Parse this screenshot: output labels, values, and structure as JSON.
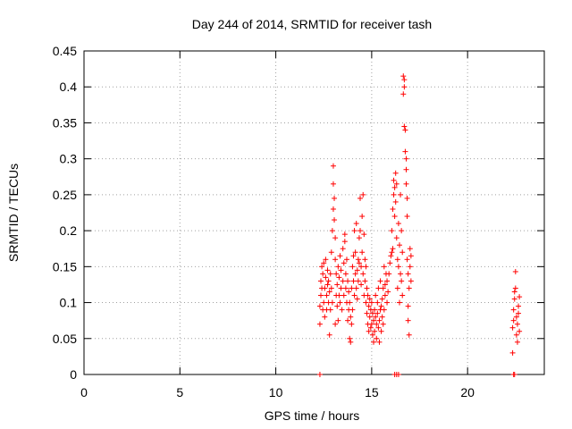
{
  "chart_data": {
    "type": "scatter",
    "title": "Day 244 of 2014, SRMTID for receiver tash",
    "xlabel": "GPS time / hours",
    "ylabel": "SRMTID / TECUs",
    "xlim": [
      0,
      24
    ],
    "ylim": [
      0,
      0.45
    ],
    "xticks": [
      0,
      5,
      10,
      15,
      20
    ],
    "yticks": [
      0,
      0.05,
      0.1,
      0.15,
      0.2,
      0.25,
      0.3,
      0.35,
      0.4,
      0.45
    ],
    "grid": true,
    "marker_color": "#ff0000",
    "series": [
      {
        "values": [
          [
            12.3,
            0.07
          ],
          [
            12.3,
            0.095
          ],
          [
            12.35,
            0.11
          ],
          [
            12.35,
            0.13
          ],
          [
            12.4,
            0.15
          ],
          [
            12.4,
            0.12
          ],
          [
            12.45,
            0.09
          ],
          [
            12.45,
            0.14
          ],
          [
            12.5,
            0.155
          ],
          [
            12.5,
            0.1
          ],
          [
            12.55,
            0.12
          ],
          [
            12.55,
            0.08
          ],
          [
            12.6,
            0.135
          ],
          [
            12.6,
            0.16
          ],
          [
            12.65,
            0.11
          ],
          [
            12.65,
            0.09
          ],
          [
            12.7,
            0.125
          ],
          [
            12.7,
            0.145
          ],
          [
            12.75,
            0.1
          ],
          [
            12.75,
            0.13
          ],
          [
            12.8,
            0.055
          ],
          [
            12.8,
            0.115
          ],
          [
            12.85,
            0.14
          ],
          [
            12.85,
            0.09
          ],
          [
            12.9,
            0.17
          ],
          [
            12.9,
            0.12
          ],
          [
            12.95,
            0.2
          ],
          [
            12.95,
            0.1
          ],
          [
            13.0,
            0.29
          ],
          [
            13.0,
            0.265
          ],
          [
            13.0,
            0.23
          ],
          [
            13.05,
            0.245
          ],
          [
            13.05,
            0.215
          ],
          [
            13.1,
            0.19
          ],
          [
            13.1,
            0.16
          ],
          [
            13.1,
            0.07
          ],
          [
            13.15,
            0.11
          ],
          [
            13.15,
            0.14
          ],
          [
            13.2,
            0.125
          ],
          [
            13.2,
            0.095
          ],
          [
            13.25,
            0.075
          ],
          [
            13.25,
            0.15
          ],
          [
            13.3,
            0.135
          ],
          [
            13.3,
            0.11
          ],
          [
            13.35,
            0.1
          ],
          [
            13.35,
            0.165
          ],
          [
            13.4,
            0.12
          ],
          [
            13.4,
            0.145
          ],
          [
            13.45,
            0.09
          ],
          [
            13.5,
            0.13
          ],
          [
            13.5,
            0.175
          ],
          [
            13.55,
            0.11
          ],
          [
            13.55,
            0.155
          ],
          [
            13.6,
            0.185
          ],
          [
            13.6,
            0.195
          ],
          [
            13.65,
            0.12
          ],
          [
            13.65,
            0.14
          ],
          [
            13.7,
            0.1
          ],
          [
            13.7,
            0.16
          ],
          [
            13.75,
            0.13
          ],
          [
            13.75,
            0.075
          ],
          [
            13.8,
            0.09
          ],
          [
            13.8,
            0.115
          ],
          [
            13.85,
            0.05
          ],
          [
            13.85,
            0.1
          ],
          [
            13.9,
            0.045
          ],
          [
            13.9,
            0.08
          ],
          [
            13.95,
            0.07
          ],
          [
            13.95,
            0.12
          ],
          [
            14.0,
            0.15
          ],
          [
            14.0,
            0.09
          ],
          [
            14.05,
            0.13
          ],
          [
            14.05,
            0.165
          ],
          [
            14.1,
            0.2
          ],
          [
            14.1,
            0.11
          ],
          [
            14.15,
            0.14
          ],
          [
            14.15,
            0.17
          ],
          [
            14.2,
            0.21
          ],
          [
            14.2,
            0.12
          ],
          [
            14.25,
            0.145
          ],
          [
            14.25,
            0.105
          ],
          [
            14.3,
            0.16
          ],
          [
            14.3,
            0.13
          ],
          [
            14.35,
            0.19
          ],
          [
            14.35,
            0.155
          ],
          [
            14.4,
            0.245
          ],
          [
            14.4,
            0.2
          ],
          [
            14.45,
            0.15
          ],
          [
            14.45,
            0.125
          ],
          [
            14.5,
            0.22
          ],
          [
            14.5,
            0.17
          ],
          [
            14.55,
            0.25
          ],
          [
            14.55,
            0.14
          ],
          [
            14.6,
            0.195
          ],
          [
            14.6,
            0.11
          ],
          [
            14.65,
            0.13
          ],
          [
            14.65,
            0.16
          ],
          [
            14.7,
            0.15
          ],
          [
            14.7,
            0.1
          ],
          [
            14.75,
            0.085
          ],
          [
            14.75,
            0.12
          ],
          [
            14.8,
            0.11
          ],
          [
            14.8,
            0.07
          ],
          [
            14.85,
            0.095
          ],
          [
            14.85,
            0.06
          ],
          [
            14.9,
            0.08
          ],
          [
            14.9,
            0.105
          ],
          [
            14.95,
            0.09
          ],
          [
            14.95,
            0.065
          ],
          [
            15.0,
            0.07
          ],
          [
            15.0,
            0.1
          ],
          [
            15.05,
            0.055
          ],
          [
            15.05,
            0.085
          ],
          [
            15.1,
            0.045
          ],
          [
            15.1,
            0.075
          ],
          [
            15.15,
            0.09
          ],
          [
            15.15,
            0.06
          ],
          [
            15.2,
            0.08
          ],
          [
            15.2,
            0.11
          ],
          [
            15.25,
            0.05
          ],
          [
            15.25,
            0.07
          ],
          [
            15.3,
            0.1
          ],
          [
            15.3,
            0.085
          ],
          [
            15.35,
            0.065
          ],
          [
            15.35,
            0.12
          ],
          [
            15.4,
            0.075
          ],
          [
            15.4,
            0.045
          ],
          [
            15.45,
            0.09
          ],
          [
            15.45,
            0.13
          ],
          [
            15.5,
            0.06
          ],
          [
            15.5,
            0.095
          ],
          [
            15.55,
            0.08
          ],
          [
            15.55,
            0.105
          ],
          [
            15.6,
            0.12
          ],
          [
            15.6,
            0.07
          ],
          [
            15.65,
            0.15
          ],
          [
            15.65,
            0.09
          ],
          [
            15.7,
            0.11
          ],
          [
            15.7,
            0.125
          ],
          [
            15.75,
            0.14
          ],
          [
            15.8,
            0.1
          ],
          [
            15.8,
            0.13
          ],
          [
            15.85,
            0.115
          ],
          [
            15.9,
            0.14
          ],
          [
            15.95,
            0.155
          ],
          [
            16.0,
            0.165
          ],
          [
            16.05,
            0.17
          ],
          [
            16.05,
            0.2
          ],
          [
            16.1,
            0.175
          ],
          [
            16.1,
            0.23
          ],
          [
            16.15,
            0.25
          ],
          [
            16.15,
            0.27
          ],
          [
            16.2,
            0.26
          ],
          [
            16.2,
            0.22
          ],
          [
            16.25,
            0.24
          ],
          [
            16.25,
            0.28
          ],
          [
            16.3,
            0.265
          ],
          [
            16.3,
            0.19
          ],
          [
            16.35,
            0.16
          ],
          [
            16.35,
            0.12
          ],
          [
            16.4,
            0.15
          ],
          [
            16.4,
            0.21
          ],
          [
            16.45,
            0.1
          ],
          [
            16.45,
            0.18
          ],
          [
            16.5,
            0.14
          ],
          [
            16.5,
            0.25
          ],
          [
            16.55,
            0.13
          ],
          [
            16.55,
            0.2
          ],
          [
            16.6,
            0.11
          ],
          [
            16.6,
            0.17
          ],
          [
            16.65,
            0.415
          ],
          [
            16.65,
            0.39
          ],
          [
            16.7,
            0.41
          ],
          [
            16.7,
            0.4
          ],
          [
            16.7,
            0.345
          ],
          [
            16.75,
            0.34
          ],
          [
            16.75,
            0.31
          ],
          [
            16.8,
            0.3
          ],
          [
            16.8,
            0.285
          ],
          [
            16.8,
            0.265
          ],
          [
            16.85,
            0.245
          ],
          [
            16.85,
            0.22
          ],
          [
            16.85,
            0.16
          ],
          [
            16.9,
            0.14
          ],
          [
            16.9,
            0.095
          ],
          [
            16.9,
            0.075
          ],
          [
            16.95,
            0.055
          ],
          [
            16.95,
            0.12
          ],
          [
            17.0,
            0.15
          ],
          [
            17.0,
            0.175
          ],
          [
            17.05,
            0.13
          ],
          [
            17.05,
            0.165
          ],
          [
            22.35,
            0.03
          ],
          [
            22.35,
            0.065
          ],
          [
            22.4,
            0.075
          ],
          [
            22.4,
            0.09
          ],
          [
            22.45,
            0.105
          ],
          [
            22.45,
            0.115
          ],
          [
            22.5,
            0.143
          ],
          [
            22.5,
            0.12
          ],
          [
            22.55,
            0.055
          ],
          [
            22.55,
            0.08
          ],
          [
            22.6,
            0.045
          ],
          [
            22.6,
            0.07
          ],
          [
            22.65,
            0.095
          ],
          [
            22.65,
            0.085
          ],
          [
            22.7,
            0.06
          ],
          [
            22.7,
            0.108
          ]
        ]
      },
      {
        "values": [
          [
            12.3,
            0
          ],
          [
            16.2,
            0
          ],
          [
            16.3,
            0
          ],
          [
            16.4,
            0
          ],
          [
            22.4,
            0
          ],
          [
            22.45,
            0
          ]
        ]
      }
    ]
  }
}
